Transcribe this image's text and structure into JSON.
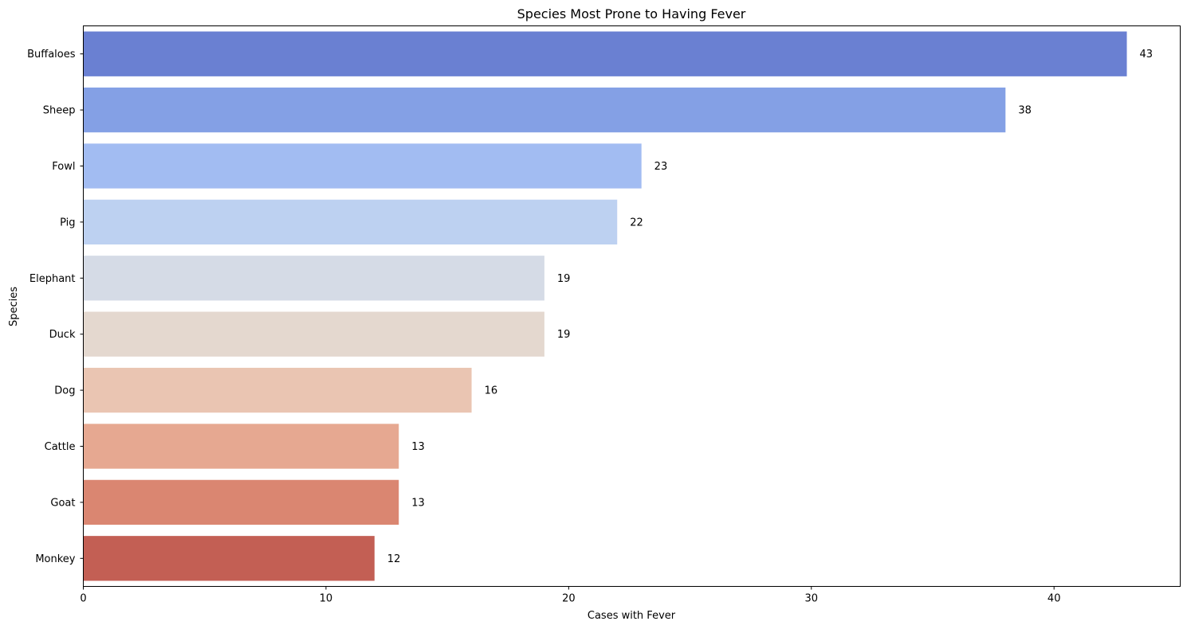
{
  "chart_data": {
    "type": "bar",
    "orientation": "horizontal",
    "title": "Species Most Prone to Having Fever",
    "xlabel": "Cases with Fever",
    "ylabel": "Species",
    "categories": [
      "Buffaloes",
      "Sheep",
      "Fowl",
      "Pig",
      "Elephant",
      "Duck",
      "Dog",
      "Cattle",
      "Goat",
      "Monkey"
    ],
    "values": [
      43,
      38,
      23,
      22,
      19,
      19,
      16,
      13,
      13,
      12
    ],
    "data_labels": [
      "43",
      "38",
      "23",
      "22",
      "19",
      "19",
      "16",
      "13",
      "13",
      "12"
    ],
    "colors": [
      "#6a80d2",
      "#84a0e5",
      "#a2bcf2",
      "#bdd1f1",
      "#d5dbe6",
      "#e4d8cf",
      "#eac5b2",
      "#e6a891",
      "#da8671",
      "#c35f54"
    ],
    "xlim": [
      0,
      45.2
    ],
    "xticks": [
      0,
      10,
      20,
      30,
      40
    ],
    "xtick_labels": [
      "0",
      "10",
      "20",
      "30",
      "40"
    ],
    "grid": false,
    "legend": "none"
  }
}
